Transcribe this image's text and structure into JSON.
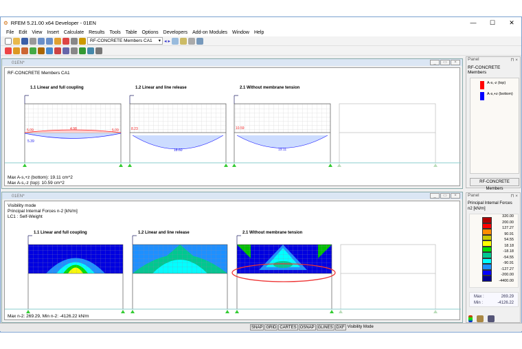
{
  "app": {
    "title": "RFEM 5.21.00 x64 Developer - 01EN",
    "controls": [
      "—",
      "☐",
      "✕"
    ]
  },
  "menu": [
    "File",
    "Edit",
    "View",
    "Insert",
    "Calculate",
    "Results",
    "Tools",
    "Table",
    "Options",
    "Developers",
    "Add-on Modules",
    "Window",
    "Help"
  ],
  "toolbar": {
    "combo_value": "RF-CONCRETE Members CA1"
  },
  "top_window": {
    "title": "01EN*",
    "header": "RF-CONCRETE Members CA1",
    "structures": [
      "1.1 Linear and full coupling",
      "1.2 Linear and line release",
      "2.1  Without membrane tension"
    ],
    "values": {
      "s1_top_left": "5.09",
      "s1_top_mid": "4.98",
      "s1_top_right": "5.09",
      "s1_bottom": "5.39",
      "s2_top": "8.23",
      "s2_bottom": "18.60",
      "s3_top": "10.59",
      "s3_bottom": "19.11"
    },
    "info": [
      "Max A-s,+z (bottom): 19.11 cm^2",
      "Max A-s,-z (top): 10.59 cm^2"
    ]
  },
  "bottom_window": {
    "title": "01EN*",
    "header": [
      "Visibility mode",
      "Principal Internal Forces n-2 [kN/m]",
      "LC1 : Self-Weight"
    ],
    "structures": [
      "1.1 Linear and full coupling",
      "1.2 Linear and line release",
      "2.1  Without membrane tension"
    ],
    "info": "Max n-2: 269.29, Min n-2: -4126.22 kN/m"
  },
  "panel1": {
    "title": "Panel",
    "heading": "RF-CONCRETE Members",
    "legend": [
      {
        "label": "A-s,-z (top)",
        "color": "#ff0000"
      },
      {
        "label": "A-s,+z (bottom)",
        "color": "#0000ff"
      }
    ],
    "button": "RF-CONCRETE Members"
  },
  "panel2": {
    "title": "Panel",
    "heading": "Principal Internal Forces",
    "unit": "n2 [kN/m]",
    "scale": [
      "320.00",
      "200.00",
      "127.27",
      "90.91",
      "54.55",
      "18.18",
      "-18.18",
      "-54.55",
      "-90.91",
      "-127.27",
      "-200.00",
      "-4400.00"
    ],
    "colors": [
      "#b00000",
      "#ff0000",
      "#ff8c00",
      "#c8c800",
      "#ffff00",
      "#00e000",
      "#00c890",
      "#00ffff",
      "#1e90ff",
      "#0000ff",
      "#000090"
    ],
    "max_label": "Max :",
    "max": "269.29",
    "min_label": "Min :",
    "min": "-4126.22"
  },
  "status": [
    "SNAP",
    "GRID",
    "CARTES",
    "OSNAP",
    "GLINES",
    "DXF"
  ],
  "status_text": "Visibility Mode"
}
